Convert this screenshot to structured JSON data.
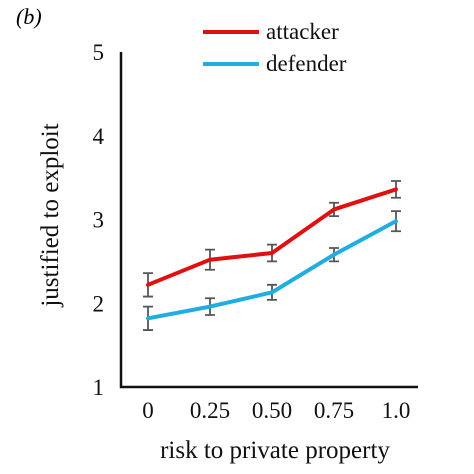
{
  "panel_label": "(b)",
  "chart_data": {
    "type": "line",
    "title": "",
    "xlabel": "risk to private property",
    "ylabel": "justified to exploit",
    "categories": [
      "0",
      "0.25",
      "0.50",
      "0.75",
      "1.0"
    ],
    "ylim": [
      1,
      5
    ],
    "yticks": [
      "1",
      "2",
      "3",
      "4",
      "5"
    ],
    "grid": false,
    "legend_position": "top-right",
    "series": [
      {
        "name": "attacker",
        "color": "#e01010",
        "values": [
          2.22,
          2.52,
          2.6,
          3.12,
          3.36
        ],
        "err_low": [
          2.08,
          2.4,
          2.5,
          3.04,
          3.26
        ],
        "err_high": [
          2.36,
          2.64,
          2.7,
          3.2,
          3.46
        ]
      },
      {
        "name": "defender",
        "color": "#20aee0",
        "values": [
          1.82,
          1.96,
          2.13,
          2.58,
          2.98
        ],
        "err_low": [
          1.68,
          1.86,
          2.04,
          2.5,
          2.86
        ],
        "err_high": [
          1.96,
          2.06,
          2.22,
          2.66,
          3.1
        ]
      }
    ]
  }
}
